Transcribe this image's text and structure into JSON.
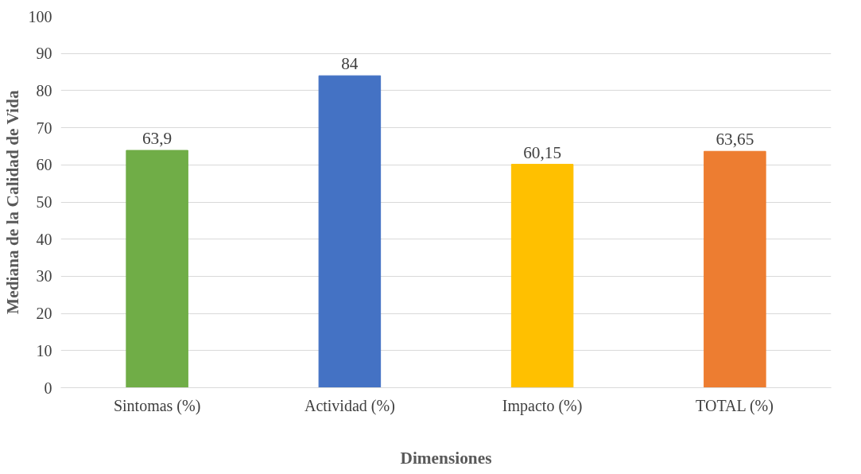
{
  "chart_data": {
    "type": "bar",
    "xlabel": "Dimensiones",
    "ylabel": "Mediana de la Calidad de Vida",
    "categories": [
      "Sintomas (%)",
      "Actividad (%)",
      "Impacto (%)",
      "TOTAL (%)"
    ],
    "values": [
      63.9,
      84,
      60.15,
      63.65
    ],
    "colors": [
      "#70ad47",
      "#4472c4",
      "#ffc000",
      "#ed7d31"
    ],
    "value_labels": [
      "63,9",
      "84",
      "60,15",
      "63,65"
    ],
    "ylim": [
      0,
      100
    ],
    "yticks": [
      0,
      10,
      20,
      30,
      40,
      50,
      60,
      70,
      80,
      90,
      100
    ],
    "grid": "y"
  }
}
